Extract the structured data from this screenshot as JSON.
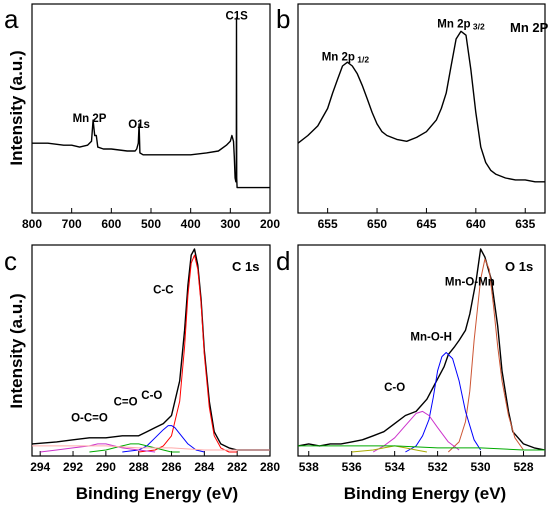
{
  "chart_data": [
    {
      "panel": "a",
      "type": "line",
      "ylabel": "Intensity (a.u.)",
      "xlim": [
        800,
        200
      ],
      "ylim": [
        0,
        100
      ],
      "xticks": [
        800,
        700,
        600,
        500,
        400,
        300,
        200
      ],
      "annotations": [
        {
          "text": "Mn 2P",
          "x": 655,
          "y": 43
        },
        {
          "text": "O1s",
          "x": 530,
          "y": 40
        },
        {
          "text": "C1S",
          "x": 284,
          "y": 96
        }
      ],
      "series": [
        {
          "color": "#000000",
          "x": [
            800,
            760,
            720,
            700,
            680,
            660,
            650,
            646,
            642,
            638,
            634,
            620,
            600,
            560,
            540,
            536,
            532,
            530,
            528,
            520,
            480,
            440,
            400,
            360,
            330,
            310,
            300,
            296,
            292,
            290,
            288,
            286,
            285,
            284.5,
            284,
            283,
            282,
            280,
            270,
            260,
            240,
            220,
            200
          ],
          "y": [
            32,
            32,
            31,
            31,
            30,
            31,
            33,
            44,
            36,
            36,
            30,
            29,
            29,
            28,
            28,
            29,
            32,
            42,
            27,
            26,
            26,
            26,
            26,
            27,
            28,
            31,
            33,
            36,
            33,
            25,
            14,
            12,
            14,
            97,
            14,
            9,
            9,
            9,
            9,
            9,
            9,
            9,
            9
          ]
        }
      ]
    },
    {
      "panel": "b",
      "type": "line",
      "title": "Mn 2P",
      "xlim": [
        658,
        633
      ],
      "ylim": [
        0,
        100
      ],
      "xticks": [
        655,
        650,
        645,
        640,
        635
      ],
      "annotations": [
        {
          "text": "Mn 2p",
          "sub": "1/2",
          "x": 653.2,
          "y": 75
        },
        {
          "text": "Mn 2p",
          "sub": "3/2",
          "x": 641.5,
          "y": 92
        }
      ],
      "series": [
        {
          "color": "#000000",
          "x": [
            658,
            657,
            656,
            655,
            654.5,
            654,
            653.5,
            653,
            652.5,
            652,
            651.5,
            651,
            650.5,
            650,
            649.5,
            649,
            648,
            647,
            646,
            645,
            644,
            643.5,
            643,
            642.5,
            642,
            641.5,
            641,
            640.5,
            640,
            639.5,
            639,
            638.5,
            638,
            637,
            636,
            635,
            634,
            633
          ],
          "y": [
            32,
            36,
            41,
            50,
            58,
            65,
            72,
            74,
            72,
            68,
            62,
            55,
            48,
            42,
            38,
            36,
            34,
            33,
            35,
            38,
            44,
            50,
            58,
            72,
            86,
            90,
            88,
            70,
            48,
            30,
            22,
            18,
            16,
            14,
            13,
            13,
            12,
            12
          ]
        }
      ]
    },
    {
      "panel": "c",
      "type": "line",
      "title": "C 1s",
      "xlabel": "Binding Energy (eV)",
      "ylabel": "Intensity (a.u.)",
      "xlim": [
        294.5,
        280
      ],
      "ylim": [
        0,
        100
      ],
      "xticks": [
        294,
        292,
        290,
        288,
        286,
        284,
        282,
        280
      ],
      "annotations": [
        {
          "text": "C-C",
          "x": 286.5,
          "y": 78
        },
        {
          "text": "C-O",
          "x": 287.2,
          "y": 26
        },
        {
          "text": "C=O",
          "x": 288.8,
          "y": 23
        },
        {
          "text": "O-C=O",
          "x": 291,
          "y": 15
        }
      ],
      "series": [
        {
          "color": "#000000",
          "x": [
            294.5,
            293,
            292,
            291,
            290,
            289,
            288,
            287.5,
            287,
            286.5,
            286,
            285.5,
            285.2,
            285,
            284.8,
            284.6,
            284.4,
            284.2,
            284,
            283.7,
            283.4,
            283,
            282.5,
            282,
            281,
            280
          ],
          "y": [
            4,
            5,
            6,
            7,
            7,
            8,
            8,
            10,
            12,
            14,
            18,
            35,
            60,
            82,
            97,
            100,
            92,
            75,
            50,
            25,
            10,
            4,
            2,
            1,
            1,
            1
          ]
        },
        {
          "color": "#ff0000",
          "x": [
            288,
            287,
            286.5,
            286,
            285.5,
            285.2,
            285,
            284.8,
            284.6,
            284.4,
            284.2,
            284,
            283.7,
            283.4,
            283,
            282.5,
            282
          ],
          "y": [
            0,
            1,
            3,
            8,
            25,
            52,
            77,
            93,
            97,
            90,
            73,
            48,
            22,
            8,
            2,
            0,
            0
          ]
        },
        {
          "color": "#0000ff",
          "x": [
            289,
            288,
            287.5,
            287,
            286.5,
            286.2,
            286,
            285.8,
            285.5,
            285,
            284.5,
            284
          ],
          "y": [
            0,
            1,
            3,
            7,
            11,
            13,
            13,
            12,
            9,
            4,
            1,
            0
          ]
        },
        {
          "color": "#00aa00",
          "x": [
            291,
            290,
            289.5,
            289,
            288.5,
            288,
            287.5,
            287,
            286.5,
            286,
            285.5
          ],
          "y": [
            0,
            1,
            2,
            3,
            4,
            4,
            3,
            2,
            1,
            0,
            0
          ]
        },
        {
          "color": "#cc33cc",
          "x": [
            294,
            293,
            292,
            291,
            290.5,
            290,
            289.5,
            289,
            288,
            287
          ],
          "y": [
            0,
            1,
            2,
            3,
            4,
            4,
            3,
            2,
            1,
            0
          ]
        },
        {
          "color": "#ffaaaa",
          "x": [
            294.5,
            292,
            290,
            288,
            286,
            284,
            282,
            280
          ],
          "y": [
            3,
            3,
            3,
            2,
            2,
            1,
            1,
            1
          ]
        }
      ]
    },
    {
      "panel": "d",
      "type": "line",
      "title": "O 1s",
      "xlabel": "Binding Energy (eV)",
      "xlim": [
        538.5,
        527
      ],
      "ylim": [
        0,
        100
      ],
      "xticks": [
        538,
        536,
        534,
        532,
        530,
        528
      ],
      "annotations": [
        {
          "text": "Mn-O-Mn",
          "x": 530.5,
          "y": 82
        },
        {
          "text": "Mn-O-H",
          "x": 532.3,
          "y": 55
        },
        {
          "text": "C-O",
          "x": 534,
          "y": 30
        }
      ],
      "series": [
        {
          "color": "#000000",
          "x": [
            538.5,
            538,
            537.5,
            537,
            536.5,
            536,
            535.5,
            535,
            534.5,
            534,
            533.5,
            533,
            532.5,
            532,
            531.7,
            531.5,
            531.2,
            531,
            530.7,
            530.5,
            530.2,
            530,
            529.8,
            529.5,
            529.2,
            529,
            528.7,
            528.5,
            528,
            527.5,
            527
          ],
          "y": [
            3,
            4,
            3,
            4,
            4,
            5,
            6,
            8,
            10,
            14,
            18,
            20,
            26,
            36,
            42,
            48,
            52,
            55,
            60,
            68,
            85,
            100,
            96,
            85,
            62,
            40,
            20,
            10,
            4,
            2,
            1
          ]
        },
        {
          "color": "#cc5533",
          "x": [
            531.5,
            531,
            530.7,
            530.5,
            530.3,
            530,
            529.8,
            529.6,
            529.4,
            529.2,
            529,
            528.7,
            528.4,
            528
          ],
          "y": [
            0,
            5,
            15,
            30,
            55,
            85,
            95,
            90,
            72,
            52,
            35,
            18,
            7,
            1
          ]
        },
        {
          "color": "#0000ff",
          "x": [
            533.5,
            533,
            532.7,
            532.4,
            532.2,
            532,
            531.8,
            531.6,
            531.3,
            531,
            530.7,
            530.3,
            530
          ],
          "y": [
            0,
            3,
            8,
            16,
            27,
            40,
            47,
            49,
            46,
            35,
            20,
            6,
            1
          ]
        },
        {
          "color": "#cc33cc",
          "x": [
            535,
            534.5,
            534,
            533.5,
            533,
            532.7,
            532.4,
            532,
            531.5,
            531
          ],
          "y": [
            0,
            3,
            7,
            13,
            19,
            20,
            18,
            12,
            5,
            1
          ]
        },
        {
          "color": "#aaaa00",
          "x": [
            536,
            535,
            534.5,
            534,
            533.5,
            533,
            532.5
          ],
          "y": [
            0,
            1,
            2,
            3,
            2,
            1,
            0
          ]
        },
        {
          "color": "#00aa00",
          "x": [
            538.5,
            536,
            534,
            532,
            530,
            528,
            527
          ],
          "y": [
            3,
            3,
            3,
            2,
            2,
            1,
            1
          ]
        }
      ]
    }
  ]
}
